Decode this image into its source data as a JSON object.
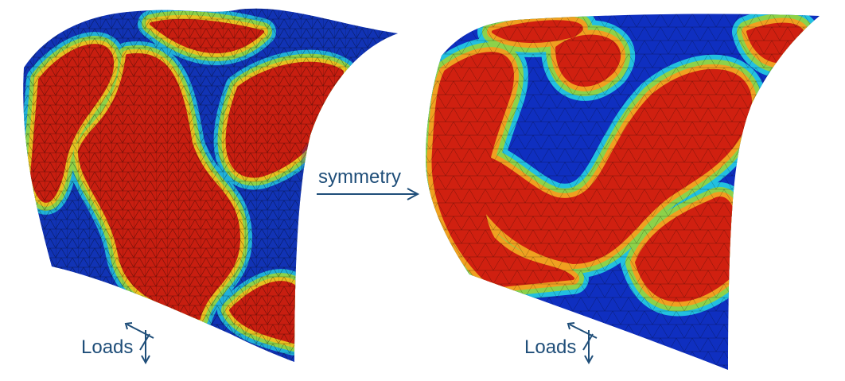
{
  "arrow": {
    "label": "symmetry"
  },
  "panels": [
    {
      "load_label": "Loads"
    },
    {
      "load_label": "Loads"
    }
  ]
}
